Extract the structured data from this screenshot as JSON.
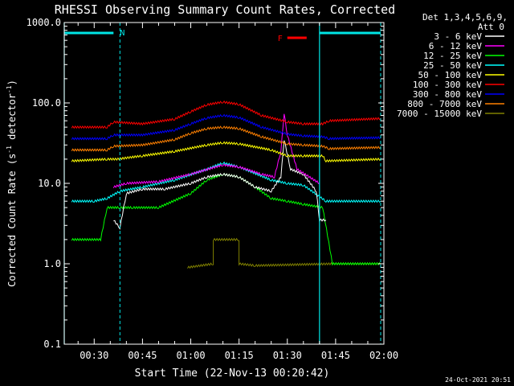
{
  "chart_data": {
    "type": "line",
    "title": "RHESSI Observing Summary Count Rates, Corrected",
    "xlabel": "Start Time (22-Nov-13 00:20:42)",
    "ylabel_main": "Corrected Count Rate (s",
    "ylabel_sup1": "-1",
    "ylabel_mid": " detector",
    "ylabel_sup2": "-1",
    "ylabel_end": ")",
    "y_scale": "log",
    "ylim": [
      0.1,
      1000
    ],
    "xlim": [
      "00:20:42",
      "02:00:00"
    ],
    "x_ticks": [
      "00:30",
      "00:45",
      "01:00",
      "01:15",
      "01:30",
      "01:45",
      "02:00"
    ],
    "y_ticks": [
      "0.1",
      "1.0",
      "10.0",
      "100.0",
      "1000.0"
    ],
    "legend_header": [
      "Det 1,3,4,5,6,9,",
      "Att 0"
    ],
    "legend_placement": "right",
    "annotations": {
      "N_label": "N",
      "F_label": "F",
      "footer_date": "24-Oct-2021 20:51",
      "N_bar_color": "#00e5e5",
      "F_bar_color": "#ff0000",
      "N_intervals": [
        [
          "00:20:42",
          "00:36:00"
        ],
        [
          "01:40:00",
          "01:59:00"
        ]
      ],
      "F_interval": [
        "01:30:00",
        "01:36:00"
      ],
      "night_lines_solid": [
        "00:20:42",
        "01:40:00"
      ],
      "night_lines_dashed": [
        "00:38:00",
        "01:59:00"
      ]
    },
    "series": [
      {
        "name": "3 - 6 keV",
        "color": "#ffffff",
        "points": [
          [
            "00:25",
            0
          ],
          [
            "00:34",
            0
          ],
          [
            "00:36",
            3.5
          ],
          [
            "00:38",
            2.8
          ],
          [
            "00:40",
            7.5
          ],
          [
            "00:45",
            8.5
          ],
          [
            "00:52",
            8.5
          ],
          [
            "01:00",
            10
          ],
          [
            "01:05",
            12
          ],
          [
            "01:10",
            13
          ],
          [
            "01:15",
            12
          ],
          [
            "01:20",
            9
          ],
          [
            "01:25",
            8
          ],
          [
            "01:28",
            12
          ],
          [
            "01:29",
            35
          ],
          [
            "01:31",
            15
          ],
          [
            "01:35",
            13
          ],
          [
            "01:39",
            8
          ],
          [
            "01:40",
            3.5
          ],
          [
            "01:42",
            3.5
          ],
          [
            "01:43",
            0
          ]
        ]
      },
      {
        "name": "6 - 12 keV",
        "color": "#ff00ff",
        "points": [
          [
            "00:36",
            9
          ],
          [
            "00:40",
            10
          ],
          [
            "00:50",
            10.5
          ],
          [
            "01:00",
            13
          ],
          [
            "01:10",
            17
          ],
          [
            "01:15",
            16
          ],
          [
            "01:22",
            13
          ],
          [
            "01:26",
            12
          ],
          [
            "01:28",
            25
          ],
          [
            "01:29",
            75
          ],
          [
            "01:30",
            40
          ],
          [
            "01:33",
            15
          ],
          [
            "01:40",
            10
          ]
        ]
      },
      {
        "name": "12 - 25 keV",
        "color": "#00ff00",
        "points": [
          [
            "00:23",
            2.0
          ],
          [
            "00:32",
            2.0
          ],
          [
            "00:34",
            5
          ],
          [
            "00:38",
            5
          ],
          [
            "00:42",
            5
          ],
          [
            "00:50",
            5
          ],
          [
            "01:00",
            7.5
          ],
          [
            "01:05",
            11
          ],
          [
            "01:10",
            13
          ],
          [
            "01:15",
            12
          ],
          [
            "01:20",
            9
          ],
          [
            "01:25",
            6.5
          ],
          [
            "01:30",
            6
          ],
          [
            "01:35",
            5.5
          ],
          [
            "01:41",
            5
          ],
          [
            "01:44",
            1.0
          ],
          [
            "01:59",
            1.0
          ]
        ]
      },
      {
        "name": "25 - 50 keV",
        "color": "#00ffff",
        "points": [
          [
            "00:23",
            6
          ],
          [
            "00:30",
            6
          ],
          [
            "00:34",
            6.5
          ],
          [
            "00:38",
            8
          ],
          [
            "00:45",
            9
          ],
          [
            "00:55",
            11
          ],
          [
            "01:05",
            15
          ],
          [
            "01:10",
            18
          ],
          [
            "01:15",
            16
          ],
          [
            "01:25",
            11
          ],
          [
            "01:30",
            10
          ],
          [
            "01:35",
            9.5
          ],
          [
            "01:42",
            6
          ],
          [
            "01:59",
            6
          ]
        ]
      },
      {
        "name": "50 - 100 keV",
        "color": "#ffff00",
        "points": [
          [
            "00:23",
            19
          ],
          [
            "00:34",
            20
          ],
          [
            "00:37",
            20
          ],
          [
            "00:45",
            22
          ],
          [
            "00:55",
            25
          ],
          [
            "01:05",
            30
          ],
          [
            "01:10",
            32
          ],
          [
            "01:15",
            31
          ],
          [
            "01:25",
            26
          ],
          [
            "01:30",
            22
          ],
          [
            "01:35",
            22
          ],
          [
            "01:41",
            22
          ],
          [
            "01:42",
            19
          ],
          [
            "01:59",
            20
          ]
        ]
      },
      {
        "name": "100 - 300 keV",
        "color": "#ff0000",
        "points": [
          [
            "00:23",
            50
          ],
          [
            "00:34",
            50
          ],
          [
            "00:36",
            58
          ],
          [
            "00:45",
            55
          ],
          [
            "00:55",
            63
          ],
          [
            "01:00",
            78
          ],
          [
            "01:05",
            95
          ],
          [
            "01:10",
            103
          ],
          [
            "01:15",
            96
          ],
          [
            "01:22",
            70
          ],
          [
            "01:30",
            58
          ],
          [
            "01:35",
            55
          ],
          [
            "01:41",
            55
          ],
          [
            "01:43",
            60
          ],
          [
            "01:59",
            64
          ]
        ]
      },
      {
        "name": "300 - 800 keV",
        "color": "#0000ff",
        "points": [
          [
            "00:23",
            36
          ],
          [
            "00:34",
            36
          ],
          [
            "00:36",
            40
          ],
          [
            "00:45",
            40
          ],
          [
            "00:55",
            46
          ],
          [
            "01:00",
            55
          ],
          [
            "01:05",
            65
          ],
          [
            "01:10",
            70
          ],
          [
            "01:15",
            66
          ],
          [
            "01:22",
            50
          ],
          [
            "01:30",
            41
          ],
          [
            "01:35",
            39
          ],
          [
            "01:41",
            38
          ],
          [
            "01:43",
            36
          ],
          [
            "01:59",
            37
          ]
        ]
      },
      {
        "name": "800 - 7000 keV",
        "color": "#ff8000",
        "points": [
          [
            "00:23",
            26
          ],
          [
            "00:34",
            26
          ],
          [
            "00:36",
            29
          ],
          [
            "00:45",
            30
          ],
          [
            "00:55",
            35
          ],
          [
            "01:00",
            42
          ],
          [
            "01:05",
            48
          ],
          [
            "01:10",
            50
          ],
          [
            "01:15",
            48
          ],
          [
            "01:22",
            38
          ],
          [
            "01:30",
            31
          ],
          [
            "01:35",
            30
          ],
          [
            "01:41",
            29
          ],
          [
            "01:43",
            27
          ],
          [
            "01:59",
            28
          ]
        ]
      },
      {
        "name": "7000 - 15000 keV",
        "color": "#808000",
        "points": [
          [
            "00:59",
            0.9
          ],
          [
            "01:07",
            1.0
          ],
          [
            "01:07",
            2.0
          ],
          [
            "01:15",
            2.0
          ],
          [
            "01:15",
            1.0
          ],
          [
            "01:20",
            0.95
          ],
          [
            "01:44",
            1.0
          ],
          [
            "01:59",
            1.0
          ]
        ]
      }
    ]
  }
}
